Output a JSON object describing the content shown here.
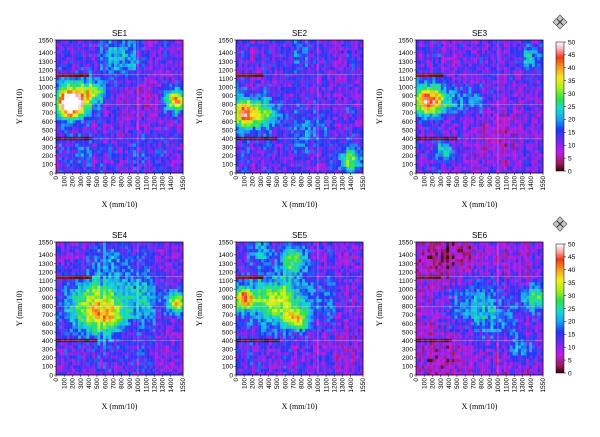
{
  "figure": {
    "colorbar": {
      "ticks": [
        "0",
        "5",
        "10",
        "15",
        "20",
        "25",
        "30",
        "35",
        "40",
        "45",
        "50"
      ],
      "stops": [
        {
          "v": 0,
          "color": "#3a0606"
        },
        {
          "v": 3,
          "color": "#9a1b5c"
        },
        {
          "v": 7,
          "color": "#c21be0"
        },
        {
          "v": 12,
          "color": "#6b2cf2"
        },
        {
          "v": 16,
          "color": "#1f38f5"
        },
        {
          "v": 20,
          "color": "#1aa4f0"
        },
        {
          "v": 24,
          "color": "#18d8d0"
        },
        {
          "v": 28,
          "color": "#2ee04e"
        },
        {
          "v": 32,
          "color": "#a8ef1a"
        },
        {
          "v": 36,
          "color": "#f2ee1e"
        },
        {
          "v": 40,
          "color": "#f59e20"
        },
        {
          "v": 44,
          "color": "#f23a18"
        },
        {
          "v": 47,
          "color": "#f7a8a8"
        },
        {
          "v": 50,
          "color": "#ffffff"
        }
      ],
      "icon": "diamond-cross-icon"
    }
  },
  "chart_data": [
    {
      "type": "heatmap",
      "title": "SE1",
      "xlabel": "X (mm/10)",
      "ylabel": "Y (mm/10)",
      "xlim": [
        0,
        1550
      ],
      "ylim": [
        0,
        1550
      ],
      "xticks": [
        "0",
        "100",
        "200",
        "300",
        "400",
        "500",
        "600",
        "700",
        "800",
        "900",
        "1000",
        "1100",
        "1200",
        "1300",
        "1400",
        "1550"
      ],
      "yticks": [
        "0",
        "100",
        "200",
        "300",
        "400",
        "500",
        "600",
        "700",
        "800",
        "900",
        "1000",
        "1100",
        "1200",
        "1300",
        "1400",
        "1550"
      ],
      "value_range": [
        0,
        50
      ],
      "base": 12,
      "hotspots": [
        {
          "x": 200,
          "y": 850,
          "r": 200,
          "v": 34
        },
        {
          "x": 180,
          "y": 800,
          "r": 110,
          "v": 28
        },
        {
          "x": 450,
          "y": 950,
          "r": 140,
          "v": 16
        },
        {
          "x": 1470,
          "y": 850,
          "r": 130,
          "v": 30
        },
        {
          "x": 800,
          "y": 1350,
          "r": 250,
          "v": 10
        },
        {
          "x": 300,
          "y": 250,
          "r": 220,
          "v": 4
        },
        {
          "x": 1100,
          "y": 250,
          "r": 300,
          "v": 3
        },
        {
          "x": 1050,
          "y": 850,
          "r": 280,
          "v": -3
        }
      ],
      "dark_bands": [
        {
          "y": 1150,
          "x0": 0,
          "x1": 400
        },
        {
          "y": 400,
          "x0": 0,
          "x1": 450
        }
      ]
    },
    {
      "type": "heatmap",
      "title": "SE2",
      "xlabel": "X (mm/10)",
      "ylabel": "Y (mm/10)",
      "xlim": [
        0,
        1550
      ],
      "ylim": [
        0,
        1550
      ],
      "xticks": [
        "0",
        "100",
        "200",
        "300",
        "400",
        "500",
        "600",
        "700",
        "800",
        "900",
        "1000",
        "1100",
        "1200",
        "1300",
        "1400",
        "1550"
      ],
      "yticks": [
        "0",
        "100",
        "200",
        "300",
        "400",
        "500",
        "600",
        "700",
        "800",
        "900",
        "1000",
        "1100",
        "1200",
        "1300",
        "1400",
        "1550"
      ],
      "value_range": [
        0,
        50
      ],
      "base": 12,
      "hotspots": [
        {
          "x": 120,
          "y": 700,
          "r": 170,
          "v": 30
        },
        {
          "x": 350,
          "y": 700,
          "r": 160,
          "v": 14
        },
        {
          "x": 900,
          "y": 500,
          "r": 300,
          "v": 6
        },
        {
          "x": 1400,
          "y": 150,
          "r": 160,
          "v": 16
        },
        {
          "x": 800,
          "y": 1350,
          "r": 250,
          "v": 4
        },
        {
          "x": 200,
          "y": 250,
          "r": 200,
          "v": 2
        }
      ],
      "dark_bands": [
        {
          "y": 1150,
          "x0": 0,
          "x1": 350
        },
        {
          "y": 400,
          "x0": 0,
          "x1": 500
        }
      ]
    },
    {
      "type": "heatmap",
      "title": "SE3",
      "xlabel": "X (mm/10)",
      "ylabel": "Y (mm/10)",
      "xlim": [
        0,
        1550
      ],
      "ylim": [
        0,
        1550
      ],
      "xticks": [
        "0",
        "100",
        "200",
        "300",
        "400",
        "500",
        "600",
        "700",
        "800",
        "900",
        "1000",
        "1100",
        "1200",
        "1300",
        "1400",
        "1550"
      ],
      "yticks": [
        "0",
        "100",
        "200",
        "300",
        "400",
        "500",
        "600",
        "700",
        "800",
        "900",
        "1000",
        "1100",
        "1200",
        "1300",
        "1400",
        "1550"
      ],
      "value_range": [
        0,
        50
      ],
      "base": 12,
      "hotspots": [
        {
          "x": 150,
          "y": 850,
          "r": 170,
          "v": 34
        },
        {
          "x": 400,
          "y": 850,
          "r": 160,
          "v": 10
        },
        {
          "x": 350,
          "y": 250,
          "r": 120,
          "v": 12
        },
        {
          "x": 700,
          "y": 850,
          "r": 150,
          "v": 8
        },
        {
          "x": 1400,
          "y": 1350,
          "r": 150,
          "v": 10
        },
        {
          "x": 1000,
          "y": 400,
          "r": 300,
          "v": -4
        }
      ],
      "dark_bands": [
        {
          "y": 1150,
          "x0": 0,
          "x1": 350
        },
        {
          "y": 400,
          "x0": 0,
          "x1": 500
        }
      ]
    },
    {
      "type": "heatmap",
      "title": "SE4",
      "xlabel": "X (mm/10)",
      "ylabel": "Y (mm/10)",
      "xlim": [
        0,
        1550
      ],
      "ylim": [
        0,
        1550
      ],
      "xticks": [
        "0",
        "100",
        "200",
        "300",
        "400",
        "500",
        "600",
        "700",
        "800",
        "900",
        "1000",
        "1100",
        "1200",
        "1300",
        "1400",
        "1550"
      ],
      "yticks": [
        "0",
        "100",
        "200",
        "300",
        "400",
        "500",
        "600",
        "700",
        "800",
        "900",
        "1000",
        "1100",
        "1200",
        "1300",
        "1400",
        "1550"
      ],
      "value_range": [
        0,
        50
      ],
      "base": 12,
      "hotspots": [
        {
          "x": 450,
          "y": 800,
          "r": 320,
          "v": 22
        },
        {
          "x": 650,
          "y": 700,
          "r": 180,
          "v": 12
        },
        {
          "x": 1000,
          "y": 900,
          "r": 280,
          "v": 10
        },
        {
          "x": 1480,
          "y": 850,
          "r": 120,
          "v": 26
        },
        {
          "x": 700,
          "y": 1350,
          "r": 250,
          "v": 6
        },
        {
          "x": 800,
          "y": 200,
          "r": 300,
          "v": 2
        }
      ],
      "dark_bands": [
        {
          "y": 1150,
          "x0": 0,
          "x1": 450
        },
        {
          "y": 400,
          "x0": 0,
          "x1": 500
        }
      ]
    },
    {
      "type": "heatmap",
      "title": "SE5",
      "xlabel": "X (mm/10)",
      "ylabel": "Y (mm/10)",
      "xlim": [
        0,
        1550
      ],
      "ylim": [
        0,
        1550
      ],
      "xticks": [
        "0",
        "100",
        "200",
        "300",
        "400",
        "500",
        "600",
        "700",
        "800",
        "900",
        "1000",
        "1100",
        "1200",
        "1300",
        "1400",
        "1550"
      ],
      "yticks": [
        "0",
        "100",
        "200",
        "300",
        "400",
        "500",
        "600",
        "700",
        "800",
        "900",
        "1000",
        "1100",
        "1200",
        "1300",
        "1400",
        "1550"
      ],
      "value_range": [
        0,
        50
      ],
      "base": 12,
      "hotspots": [
        {
          "x": 500,
          "y": 850,
          "r": 280,
          "v": 22
        },
        {
          "x": 100,
          "y": 900,
          "r": 130,
          "v": 28
        },
        {
          "x": 700,
          "y": 1350,
          "r": 170,
          "v": 16
        },
        {
          "x": 300,
          "y": 1450,
          "r": 140,
          "v": 10
        },
        {
          "x": 750,
          "y": 650,
          "r": 120,
          "v": 20
        },
        {
          "x": 1000,
          "y": 900,
          "r": 250,
          "v": 6
        },
        {
          "x": 1300,
          "y": 300,
          "r": 250,
          "v": -2
        }
      ],
      "dark_bands": [
        {
          "y": 1150,
          "x0": 0,
          "x1": 350
        },
        {
          "y": 400,
          "x0": 0,
          "x1": 550
        }
      ]
    },
    {
      "type": "heatmap",
      "title": "SE6",
      "xlabel": "X (mm/10)",
      "ylabel": "Y (mm/10)",
      "xlim": [
        0,
        1550
      ],
      "ylim": [
        0,
        1550
      ],
      "xticks": [
        "0",
        "100",
        "200",
        "300",
        "400",
        "500",
        "600",
        "700",
        "800",
        "900",
        "1000",
        "1100",
        "1200",
        "1300",
        "1400",
        "1550"
      ],
      "yticks": [
        "0",
        "100",
        "200",
        "300",
        "400",
        "500",
        "600",
        "700",
        "800",
        "900",
        "1000",
        "1100",
        "1200",
        "1300",
        "1400",
        "1550"
      ],
      "value_range": [
        0,
        50
      ],
      "base": 10,
      "hotspots": [
        {
          "x": 700,
          "y": 850,
          "r": 350,
          "v": 10
        },
        {
          "x": 1000,
          "y": 650,
          "r": 250,
          "v": 8
        },
        {
          "x": 1450,
          "y": 900,
          "r": 150,
          "v": 18
        },
        {
          "x": 1300,
          "y": 300,
          "r": 140,
          "v": 10
        },
        {
          "x": 400,
          "y": 1350,
          "r": 350,
          "v": -6
        },
        {
          "x": 300,
          "y": 200,
          "r": 280,
          "v": -4
        }
      ],
      "dark_bands": [
        {
          "y": 1150,
          "x0": 0,
          "x1": 300
        },
        {
          "y": 400,
          "x0": 0,
          "x1": 450
        }
      ]
    }
  ]
}
